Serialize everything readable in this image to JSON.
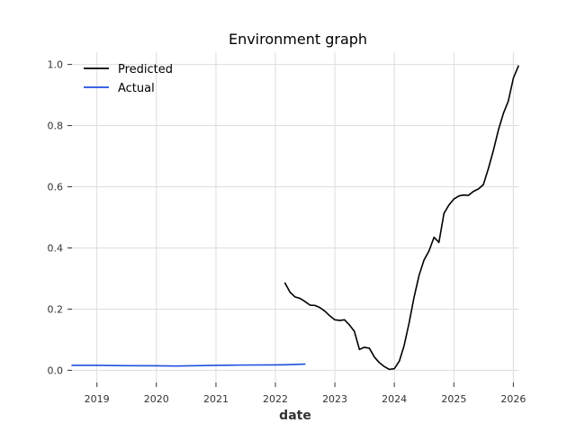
{
  "chart_data": {
    "type": "line",
    "title": "Environment graph",
    "xlabel": "date",
    "ylabel": "",
    "x_axis": "date",
    "xlim": [
      "2018-08-01",
      "2026-02-01"
    ],
    "ylim": [
      -0.04,
      1.04
    ],
    "x_ticks": [
      "2019",
      "2020",
      "2021",
      "2022",
      "2023",
      "2024",
      "2025",
      "2026"
    ],
    "y_ticks": [
      "0.0",
      "0.2",
      "0.4",
      "0.6",
      "0.8",
      "1.0"
    ],
    "grid": true,
    "legend": "top-left",
    "series": [
      {
        "name": "Predicted",
        "color": "#000000",
        "points": [
          [
            "2022-03-01",
            0.285
          ],
          [
            "2022-04-01",
            0.255
          ],
          [
            "2022-05-01",
            0.24
          ],
          [
            "2022-06-01",
            0.235
          ],
          [
            "2022-07-01",
            0.225
          ],
          [
            "2022-08-01",
            0.213
          ],
          [
            "2022-09-01",
            0.212
          ],
          [
            "2022-10-01",
            0.205
          ],
          [
            "2022-11-01",
            0.193
          ],
          [
            "2022-12-01",
            0.178
          ],
          [
            "2023-01-01",
            0.165
          ],
          [
            "2023-02-01",
            0.163
          ],
          [
            "2023-03-01",
            0.165
          ],
          [
            "2023-04-01",
            0.148
          ],
          [
            "2023-05-01",
            0.127
          ],
          [
            "2023-06-01",
            0.068
          ],
          [
            "2023-07-01",
            0.075
          ],
          [
            "2023-08-01",
            0.072
          ],
          [
            "2023-09-01",
            0.043
          ],
          [
            "2023-10-01",
            0.025
          ],
          [
            "2023-11-01",
            0.012
          ],
          [
            "2023-12-01",
            0.003
          ],
          [
            "2024-01-01",
            0.005
          ],
          [
            "2024-02-01",
            0.03
          ],
          [
            "2024-03-01",
            0.08
          ],
          [
            "2024-04-01",
            0.155
          ],
          [
            "2024-05-01",
            0.238
          ],
          [
            "2024-06-01",
            0.31
          ],
          [
            "2024-07-01",
            0.36
          ],
          [
            "2024-08-01",
            0.39
          ],
          [
            "2024-09-01",
            0.435
          ],
          [
            "2024-10-01",
            0.418
          ],
          [
            "2024-11-01",
            0.513
          ],
          [
            "2024-12-01",
            0.54
          ],
          [
            "2025-01-01",
            0.56
          ],
          [
            "2025-02-01",
            0.57
          ],
          [
            "2025-03-01",
            0.573
          ],
          [
            "2025-04-01",
            0.572
          ],
          [
            "2025-05-01",
            0.585
          ],
          [
            "2025-06-01",
            0.593
          ],
          [
            "2025-07-01",
            0.607
          ],
          [
            "2025-08-01",
            0.66
          ],
          [
            "2025-09-01",
            0.72
          ],
          [
            "2025-10-01",
            0.785
          ],
          [
            "2025-11-01",
            0.84
          ],
          [
            "2025-12-01",
            0.88
          ],
          [
            "2026-01-01",
            0.955
          ],
          [
            "2026-02-01",
            0.995
          ]
        ]
      },
      {
        "name": "Actual",
        "color": "#1f4fe0",
        "points": [
          [
            "2018-08-01",
            0.016
          ],
          [
            "2019-01-01",
            0.016
          ],
          [
            "2019-07-01",
            0.015
          ],
          [
            "2020-01-01",
            0.0145
          ],
          [
            "2020-05-01",
            0.014
          ],
          [
            "2020-08-01",
            0.0145
          ],
          [
            "2021-01-01",
            0.016
          ],
          [
            "2021-06-01",
            0.017
          ],
          [
            "2022-01-01",
            0.0175
          ],
          [
            "2022-03-01",
            0.018
          ],
          [
            "2022-07-01",
            0.02
          ]
        ]
      }
    ]
  }
}
